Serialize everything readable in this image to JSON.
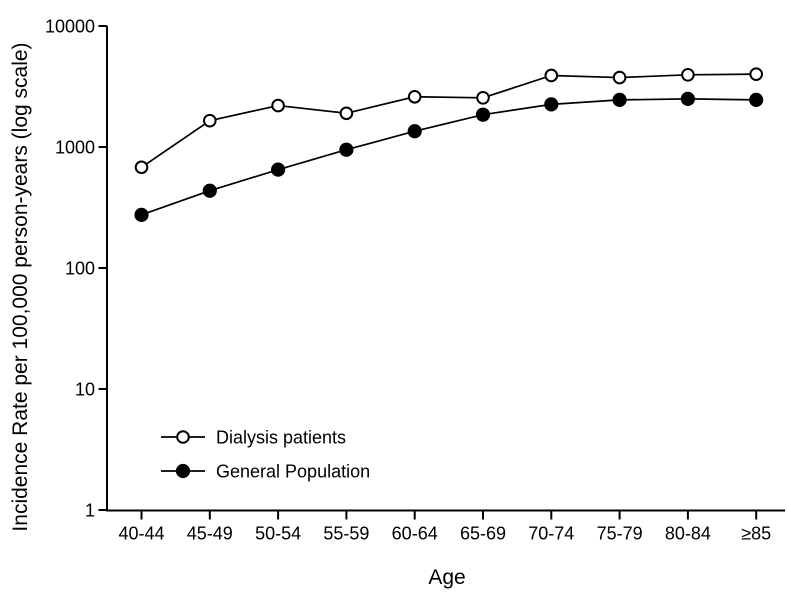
{
  "figure": {
    "background_color": "#ffffff",
    "foreground_color": "#000000"
  },
  "chart_data": {
    "type": "line",
    "title": "",
    "xlabel": "Age",
    "ylabel": "Incidence Rate per 100,000 person-years (log scale)",
    "yscale": "log",
    "ylim": [
      1,
      10000
    ],
    "yticks": [
      1,
      10,
      100,
      1000,
      10000
    ],
    "ytick_labels": [
      "1",
      "10",
      "100",
      "1000",
      "10000"
    ],
    "categories": [
      "40-44",
      "45-49",
      "50-54",
      "55-59",
      "60-64",
      "65-69",
      "70-74",
      "75-79",
      "80-84",
      "≥85"
    ],
    "series": [
      {
        "name": "Dialysis patients",
        "marker": "open-circle",
        "color": "#000000",
        "values": [
          680,
          1650,
          2200,
          1900,
          2600,
          2550,
          3900,
          3750,
          3950,
          4000
        ]
      },
      {
        "name": "General Population",
        "marker": "filled-circle",
        "color": "#000000",
        "values": [
          275,
          435,
          650,
          950,
          1350,
          1850,
          2250,
          2450,
          2500,
          2450
        ]
      }
    ],
    "grid": false,
    "legend_position": "inside-lower-left"
  }
}
